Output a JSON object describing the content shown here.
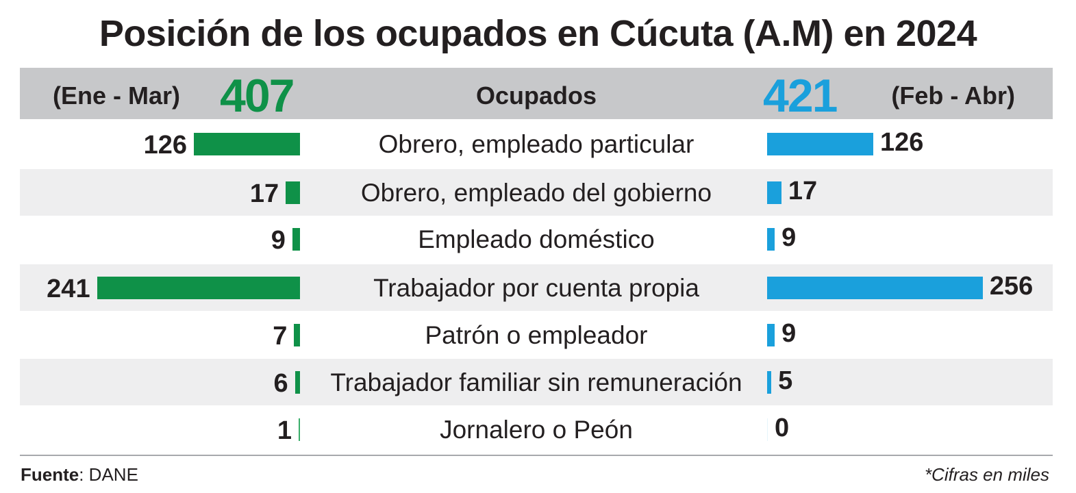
{
  "title": "Posición de los ocupados en Cúcuta (A.M) en 2024",
  "header": {
    "left_period": "(Ene - Mar)",
    "left_total": "407",
    "center_label": "Ocupados",
    "right_total": "421",
    "right_period": "(Feb - Abr)"
  },
  "colors": {
    "left": "#0f9148",
    "right": "#1aa0dc",
    "header_bg": "#c7c8ca",
    "row_shade": "#eeeeef"
  },
  "footer": {
    "source_label": "Fuente",
    "source_value": ": DANE",
    "note": "*Cifras en miles"
  },
  "chart_data": {
    "type": "bar",
    "categories": [
      "Obrero, empleado particular",
      "Obrero, empleado del gobierno",
      "Empleado doméstico",
      "Trabajador por cuenta propia",
      "Patrón o empleador",
      "Trabajador familiar sin remuneración",
      "Jornalero o Peón"
    ],
    "series": [
      {
        "name": "(Ene - Mar)",
        "values": [
          126,
          17,
          9,
          241,
          7,
          6,
          1
        ]
      },
      {
        "name": "(Feb - Abr)",
        "values": [
          126,
          17,
          9,
          256,
          9,
          5,
          0
        ]
      }
    ],
    "title": "Posición de los ocupados en Cúcuta (A.M) en 2024"
  }
}
